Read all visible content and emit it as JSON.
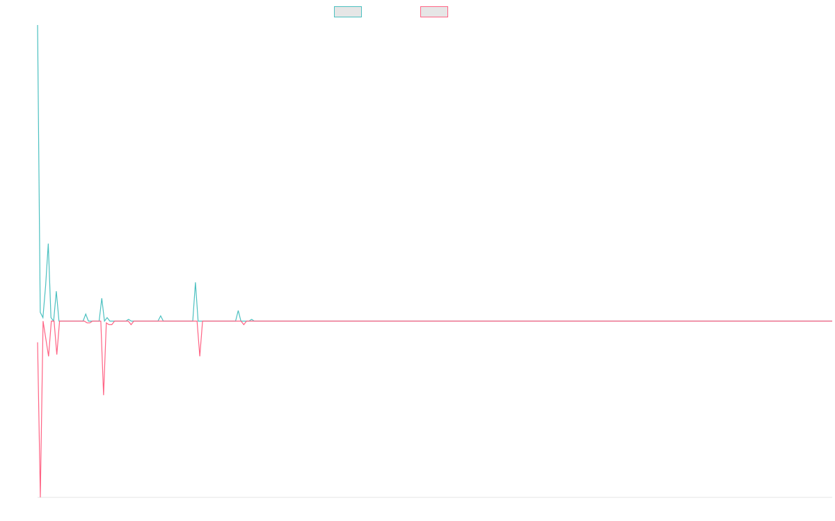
{
  "chart_data": {
    "type": "line",
    "title": "",
    "xlabel": "",
    "ylabel": "",
    "grid": false,
    "legend_placement": "top-center",
    "ylim": [
      -1.0,
      1.68
    ],
    "series": [
      {
        "color": "#4bc0c0",
        "values": [
          1.68,
          0.05,
          0.02,
          0.2,
          0.44,
          0.02,
          0.0,
          0.17,
          0.0,
          0.0,
          0.0,
          0.0,
          0.0,
          0.0,
          0.0,
          0.0,
          0.0,
          0.0,
          0.04,
          0.0,
          0.0,
          0.0,
          0.0,
          0.0,
          0.13,
          0.0,
          0.02,
          0.0,
          0.0,
          0.0,
          0.0,
          0.0,
          0.0,
          0.0,
          0.01,
          0.0,
          0.0,
          0.0,
          0.0,
          0.0,
          0.0,
          0.0,
          0.0,
          0.0,
          0.0,
          0.0,
          0.03,
          0.0,
          0.0,
          0.0,
          0.0,
          0.0,
          0.0,
          0.0,
          0.0,
          0.0,
          0.0,
          0.0,
          0.0,
          0.22,
          0.0,
          0.0,
          0.0,
          0.0,
          0.0,
          0.0,
          0.0,
          0.0,
          0.0,
          0.0,
          0.0,
          0.0,
          0.0,
          0.0,
          0.0,
          0.06,
          0.0,
          0.0,
          0.0,
          0.0,
          0.01,
          0.0,
          0.0,
          0.0,
          0.0,
          0.0,
          0.0,
          0.0,
          0.0,
          0.0,
          0.0,
          0.0,
          0.0,
          0.0,
          0.0,
          0.0,
          0.0,
          0.0,
          0.0,
          0.0,
          0.0,
          0.0,
          0.0,
          0.0,
          0.0,
          0.0,
          0.0,
          0.0,
          0.0,
          0.0,
          0.0,
          0.0,
          0.0,
          0.0,
          0.0,
          0.0,
          0.0,
          0.0,
          0.0,
          0.0,
          0.0,
          0.0,
          0.0,
          0.0,
          0.0,
          0.0,
          0.0,
          0.0,
          0.0,
          0.0,
          0.0,
          0.0,
          0.0,
          0.0,
          0.0,
          0.0,
          0.0,
          0.0,
          0.0,
          0.0,
          0.0,
          0.0,
          0.0,
          0.0,
          0.0,
          0.0,
          0.0,
          0.0,
          0.0,
          0.0,
          0.0,
          0.0,
          0.0,
          0.0,
          0.0,
          0.0,
          0.0,
          0.0,
          0.0,
          0.0,
          0.0,
          0.0,
          0.0,
          0.0,
          0.0,
          0.0,
          0.0,
          0.0,
          0.0,
          0.0,
          0.0,
          0.0,
          0.0,
          0.0,
          0.0,
          0.0,
          0.0,
          0.0,
          0.0,
          0.0,
          0.0,
          0.0,
          0.0,
          0.0,
          0.0,
          0.0,
          0.0,
          0.0,
          0.0,
          0.0,
          0.0,
          0.0,
          0.0,
          0.0,
          0.0,
          0.0,
          0.0,
          0.0,
          0.0,
          0.0,
          0.0,
          0.0,
          0.0,
          0.0,
          0.0,
          0.0,
          0.0,
          0.0,
          0.0,
          0.0,
          0.0,
          0.0,
          0.0,
          0.0,
          0.0,
          0.0,
          0.0,
          0.0,
          0.0,
          0.0,
          0.0,
          0.0,
          0.0,
          0.0,
          0.0,
          0.0,
          0.0,
          0.0,
          0.0,
          0.0,
          0.0,
          0.0,
          0.0,
          0.0,
          0.0,
          0.0,
          0.0,
          0.0,
          0.0,
          0.0,
          0.0,
          0.0,
          0.0,
          0.0,
          0.0,
          0.0,
          0.0,
          0.0,
          0.0,
          0.0,
          0.0,
          0.0,
          0.0,
          0.0,
          0.0,
          0.0,
          0.0,
          0.0,
          0.0,
          0.0,
          0.0,
          0.0,
          0.0,
          0.0,
          0.0,
          0.0,
          0.0,
          0.0,
          0.0,
          0.0,
          0.0,
          0.0,
          0.0,
          0.0,
          0.0,
          0.0,
          0.0,
          0.0,
          0.0,
          0.0,
          0.0,
          0.0,
          0.0,
          0.0,
          0.0,
          0.0,
          0.0,
          0.0,
          0.0,
          0.0,
          0.0,
          0.0,
          0.0,
          0.0,
          0.0,
          0.0,
          0.0,
          0.0
        ]
      },
      {
        "color": "#ff6384",
        "values": [
          -0.12,
          -1.0,
          0.0,
          -0.1,
          -0.2,
          0.0,
          0.0,
          -0.19,
          0.0,
          0.0,
          0.0,
          0.0,
          0.0,
          0.0,
          0.0,
          0.0,
          0.0,
          0.0,
          -0.01,
          -0.01,
          0.0,
          0.0,
          0.0,
          0.0,
          -0.42,
          -0.01,
          -0.02,
          -0.02,
          0.0,
          0.0,
          0.0,
          0.0,
          0.0,
          0.0,
          -0.02,
          0.0,
          0.0,
          0.0,
          0.0,
          0.0,
          0.0,
          0.0,
          0.0,
          0.0,
          0.0,
          0.0,
          0.0,
          0.0,
          0.0,
          0.0,
          0.0,
          0.0,
          0.0,
          0.0,
          0.0,
          0.0,
          0.0,
          0.0,
          0.0,
          -0.2,
          0.0,
          0.0,
          0.0,
          0.0,
          0.0,
          0.0,
          0.0,
          0.0,
          0.0,
          0.0,
          0.0,
          0.0,
          0.0,
          0.0,
          0.0,
          -0.02,
          0.0,
          0.0,
          0.0,
          0.0,
          0.0,
          0.0,
          0.0,
          0.0,
          0.0,
          0.0,
          0.0,
          0.0,
          0.0,
          0.0,
          0.0,
          0.0,
          0.0,
          0.0,
          0.0,
          0.0,
          0.0,
          0.0,
          0.0,
          0.0,
          0.0,
          0.0,
          0.0,
          0.0,
          0.0,
          0.0,
          0.0,
          0.0,
          0.0,
          0.0,
          0.0,
          0.0,
          0.0,
          0.0,
          0.0,
          0.0,
          0.0,
          0.0,
          0.0,
          0.0,
          0.0,
          0.0,
          0.0,
          0.0,
          0.0,
          0.0,
          0.0,
          0.0,
          0.0,
          0.0,
          0.0,
          0.0,
          0.0,
          0.0,
          0.0,
          0.0,
          0.0,
          0.0,
          0.0,
          0.0,
          0.0,
          0.0,
          0.0,
          0.0,
          0.0,
          0.0,
          0.0,
          0.0,
          0.0,
          0.0,
          0.0,
          0.0,
          0.0,
          0.0,
          0.0,
          0.0,
          0.0,
          0.0,
          0.0,
          0.0,
          0.0,
          0.0,
          0.0,
          0.0,
          0.0,
          0.0,
          0.0,
          0.0,
          0.0,
          0.0,
          0.0,
          0.0,
          0.0,
          0.0,
          0.0,
          0.0,
          0.0,
          0.0,
          0.0,
          0.0,
          0.0,
          0.0,
          0.0,
          0.0,
          0.0,
          0.0,
          0.0,
          0.0,
          0.0,
          0.0,
          0.0,
          0.0,
          0.0,
          0.0,
          0.0,
          0.0,
          0.0,
          0.0,
          0.0,
          0.0,
          0.0,
          0.0,
          0.0,
          0.0,
          0.0,
          0.0,
          0.0,
          0.0,
          0.0,
          0.0,
          0.0,
          0.0,
          0.0,
          0.0,
          0.0,
          0.0,
          0.0,
          0.0,
          0.0,
          0.0,
          0.0,
          0.0,
          0.0,
          0.0,
          0.0,
          0.0,
          0.0,
          0.0,
          0.0,
          0.0,
          0.0,
          0.0,
          0.0,
          0.0,
          0.0,
          0.0,
          0.0,
          0.0,
          0.0,
          0.0,
          0.0,
          0.0,
          0.0,
          0.0,
          0.0,
          0.0,
          0.0,
          0.0,
          0.0,
          0.0,
          0.0,
          0.0,
          0.0,
          0.0,
          0.0,
          0.0,
          0.0,
          0.0,
          0.0,
          0.0,
          0.0,
          0.0,
          0.0,
          0.0,
          0.0,
          0.0,
          0.0,
          0.0,
          0.0,
          0.0,
          0.0,
          0.0,
          0.0,
          0.0,
          0.0,
          0.0,
          0.0,
          0.0,
          0.0,
          0.0,
          0.0,
          0.0,
          0.0,
          0.0,
          0.0,
          0.0,
          0.0,
          0.0,
          0.0,
          0.0
        ]
      }
    ]
  }
}
